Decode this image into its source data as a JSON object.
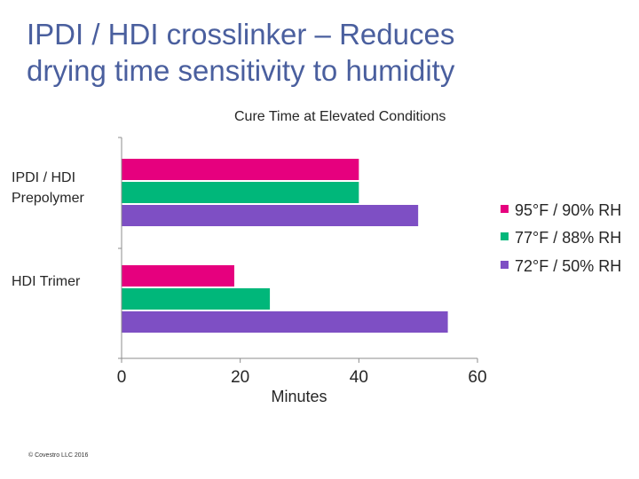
{
  "slide": {
    "title_line1": "IPDI / HDI crosslinker – Reduces",
    "title_line2": "drying time sensitivity to humidity",
    "copyright": "© Covestro LLC 2016"
  },
  "colors": {
    "title": "#4a5f9e",
    "series": [
      "#e6007e",
      "#00b77a",
      "#7e4fc4"
    ]
  },
  "chart_data": {
    "type": "bar",
    "orientation": "horizontal",
    "title": "Cure Time at Elevated Conditions",
    "xlabel": "Minutes",
    "ylabel": "",
    "xlim": [
      0,
      60
    ],
    "xticks": [
      0,
      20,
      40,
      60
    ],
    "grid": false,
    "legend_position": "right",
    "categories": [
      "IPDI / HDI Prepolymer",
      "HDI Trimer"
    ],
    "category_labels": [
      [
        "IPDI / HDI",
        "Prepolymer"
      ],
      [
        "HDI Trimer"
      ]
    ],
    "series": [
      {
        "name": "95°F / 90% RH",
        "values": [
          40,
          19
        ]
      },
      {
        "name": "77°F / 88% RH",
        "values": [
          40,
          25
        ]
      },
      {
        "name": "72°F / 50% RH",
        "values": [
          50,
          55
        ]
      }
    ]
  }
}
